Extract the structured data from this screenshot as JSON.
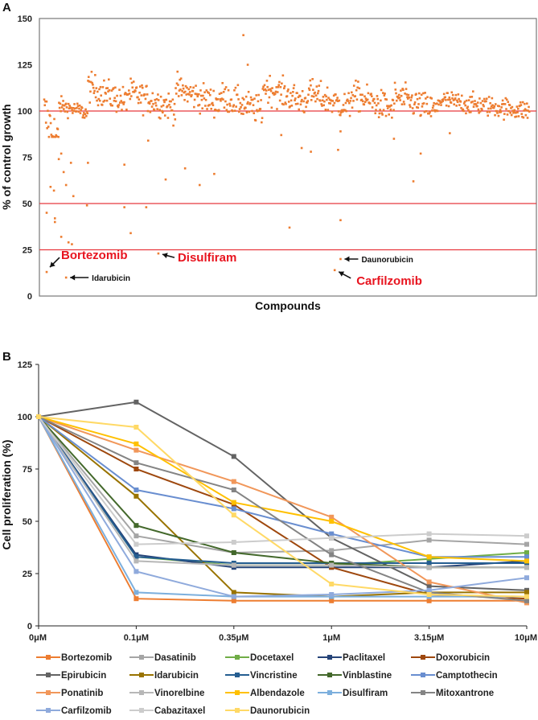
{
  "chart_data": [
    {
      "panel": "A",
      "type": "scatter",
      "title": "",
      "xlabel": "Compounds",
      "ylabel": "% of control growth",
      "ylim": [
        0,
        150
      ],
      "yticks": [
        "0",
        "25",
        "50",
        "75",
        "100",
        "125",
        "150"
      ],
      "grid": false,
      "marker_color": "#ed7d31",
      "reference_lines": [
        {
          "y": 100,
          "color": "#e8393f"
        },
        {
          "y": 50,
          "color": "#e8393f"
        },
        {
          "y": 25,
          "color": "#e8393f"
        }
      ],
      "n_compounds": 820,
      "bulk_profile": [
        {
          "from": 0.0,
          "to": 0.03,
          "center": 90,
          "spread": 14
        },
        {
          "from": 0.03,
          "to": 0.09,
          "center": 101,
          "spread": 4
        },
        {
          "from": 0.09,
          "to": 0.17,
          "center": 109,
          "spread": 7
        },
        {
          "from": 0.17,
          "to": 0.27,
          "center": 106,
          "spread": 7
        },
        {
          "from": 0.27,
          "to": 0.36,
          "center": 108,
          "spread": 7
        },
        {
          "from": 0.36,
          "to": 0.45,
          "center": 104,
          "spread": 7
        },
        {
          "from": 0.45,
          "to": 0.54,
          "center": 109,
          "spread": 7
        },
        {
          "from": 0.54,
          "to": 0.63,
          "center": 106,
          "spread": 7
        },
        {
          "from": 0.63,
          "to": 0.72,
          "center": 105,
          "spread": 7
        },
        {
          "from": 0.72,
          "to": 0.81,
          "center": 104,
          "spread": 7
        },
        {
          "from": 0.81,
          "to": 1.0,
          "center": 103,
          "spread": 5
        }
      ],
      "outliers": [
        {
          "x": 0.005,
          "y": 13
        },
        {
          "x": 0.005,
          "y": 45
        },
        {
          "x": 0.013,
          "y": 59
        },
        {
          "x": 0.02,
          "y": 57
        },
        {
          "x": 0.022,
          "y": 42
        },
        {
          "x": 0.022,
          "y": 40
        },
        {
          "x": 0.035,
          "y": 32
        },
        {
          "x": 0.04,
          "y": 67
        },
        {
          "x": 0.045,
          "y": 60
        },
        {
          "x": 0.05,
          "y": 29
        },
        {
          "x": 0.055,
          "y": 72
        },
        {
          "x": 0.057,
          "y": 28
        },
        {
          "x": 0.06,
          "y": 54
        },
        {
          "x": 0.045,
          "y": 10
        },
        {
          "x": 0.035,
          "y": 77
        },
        {
          "x": 0.03,
          "y": 74
        },
        {
          "x": 0.09,
          "y": 72
        },
        {
          "x": 0.088,
          "y": 49
        },
        {
          "x": 0.165,
          "y": 71
        },
        {
          "x": 0.165,
          "y": 48
        },
        {
          "x": 0.178,
          "y": 34
        },
        {
          "x": 0.21,
          "y": 48
        },
        {
          "x": 0.214,
          "y": 84
        },
        {
          "x": 0.235,
          "y": 23
        },
        {
          "x": 0.25,
          "y": 63
        },
        {
          "x": 0.29,
          "y": 69
        },
        {
          "x": 0.32,
          "y": 60
        },
        {
          "x": 0.35,
          "y": 66
        },
        {
          "x": 0.41,
          "y": 141
        },
        {
          "x": 0.419,
          "y": 125
        },
        {
          "x": 0.488,
          "y": 87
        },
        {
          "x": 0.505,
          "y": 37
        },
        {
          "x": 0.53,
          "y": 80
        },
        {
          "x": 0.549,
          "y": 78
        },
        {
          "x": 0.598,
          "y": 14
        },
        {
          "x": 0.61,
          "y": 20
        },
        {
          "x": 0.605,
          "y": 79
        },
        {
          "x": 0.61,
          "y": 41
        },
        {
          "x": 0.61,
          "y": 89
        },
        {
          "x": 0.72,
          "y": 85
        },
        {
          "x": 0.76,
          "y": 62
        },
        {
          "x": 0.775,
          "y": 77
        },
        {
          "x": 0.835,
          "y": 88
        }
      ],
      "annotations": [
        {
          "text": "Bortezomib",
          "style": "red",
          "x": 0.005,
          "y": 13
        },
        {
          "text": "Idarubicin",
          "style": "black",
          "x": 0.045,
          "y": 10
        },
        {
          "text": "Disulfiram",
          "style": "red",
          "x": 0.235,
          "y": 23
        },
        {
          "text": "Daunorubicin",
          "style": "black",
          "x": 0.61,
          "y": 20
        },
        {
          "text": "Carfilzomib",
          "style": "red",
          "x": 0.598,
          "y": 14
        }
      ]
    },
    {
      "panel": "B",
      "type": "line",
      "title": "",
      "xlabel": "",
      "ylabel": "Cell proliferation (%)",
      "categories": [
        "0μM",
        "0.1μM",
        "0.35μM",
        "1μM",
        "3.15μM",
        "10μM"
      ],
      "ylim": [
        0,
        125
      ],
      "yticks": [
        "0",
        "25",
        "50",
        "75",
        "100",
        "125"
      ],
      "grid": false,
      "legend_position": "bottom",
      "series": [
        {
          "name": "Bortezomib",
          "color": "#ed7d31",
          "highlight": true,
          "values": [
            100,
            13,
            12,
            12,
            12,
            12
          ]
        },
        {
          "name": "Dasatinib",
          "color": "#a5a5a5",
          "highlight": false,
          "values": [
            100,
            43,
            35,
            36,
            41,
            39
          ]
        },
        {
          "name": "Docetaxel",
          "color": "#70ad47",
          "highlight": false,
          "values": [
            100,
            33,
            29,
            29,
            32,
            35
          ]
        },
        {
          "name": "Paclitaxel",
          "color": "#264478",
          "highlight": false,
          "values": [
            100,
            34,
            28,
            28,
            28,
            31
          ]
        },
        {
          "name": "Doxorubicin",
          "color": "#9e480e",
          "highlight": false,
          "values": [
            100,
            75,
            58,
            28,
            15,
            13
          ]
        },
        {
          "name": "Epirubicin",
          "color": "#636363",
          "highlight": false,
          "values": [
            100,
            107,
            81,
            42,
            19,
            17
          ]
        },
        {
          "name": "Idarubicin",
          "color": "#997300",
          "highlight": false,
          "values": [
            100,
            62,
            16,
            14,
            16,
            16
          ]
        },
        {
          "name": "Vincristine",
          "color": "#255e91",
          "highlight": false,
          "values": [
            100,
            33,
            30,
            30,
            30,
            30
          ]
        },
        {
          "name": "Vinblastine",
          "color": "#43682b",
          "highlight": false,
          "values": [
            100,
            48,
            35,
            30,
            28,
            28
          ]
        },
        {
          "name": "Camptothecin",
          "color": "#698ed0",
          "highlight": false,
          "values": [
            100,
            65,
            56,
            44,
            33,
            33
          ]
        },
        {
          "name": "Ponatinib",
          "color": "#f1975a",
          "highlight": false,
          "values": [
            100,
            84,
            69,
            52,
            21,
            11
          ]
        },
        {
          "name": "Vinorelbine",
          "color": "#b7b7b7",
          "highlight": false,
          "values": [
            100,
            31,
            29,
            29,
            28,
            28
          ]
        },
        {
          "name": "Albendazole",
          "color": "#ffc000",
          "highlight": false,
          "values": [
            100,
            87,
            59,
            50,
            33,
            31
          ]
        },
        {
          "name": "Disulfiram",
          "color": "#7cafdd",
          "highlight": true,
          "values": [
            100,
            16,
            14,
            14,
            14,
            14
          ]
        },
        {
          "name": "Mitoxantrone",
          "color": "#848484",
          "highlight": false,
          "values": [
            100,
            78,
            65,
            34,
            16,
            12
          ]
        },
        {
          "name": "Carfilzomib",
          "color": "#8faadc",
          "highlight": true,
          "values": [
            100,
            26,
            14,
            15,
            17,
            23
          ]
        },
        {
          "name": "Cabazitaxel",
          "color": "#cccccc",
          "highlight": false,
          "values": [
            100,
            39,
            40,
            42,
            44,
            43
          ]
        },
        {
          "name": "Daunorubicin",
          "color": "#ffd966",
          "highlight": false,
          "values": [
            100,
            95,
            53,
            20,
            15,
            14
          ]
        }
      ]
    }
  ],
  "colors": {
    "highlight_text": "#e8141f",
    "axis": "#333333"
  }
}
